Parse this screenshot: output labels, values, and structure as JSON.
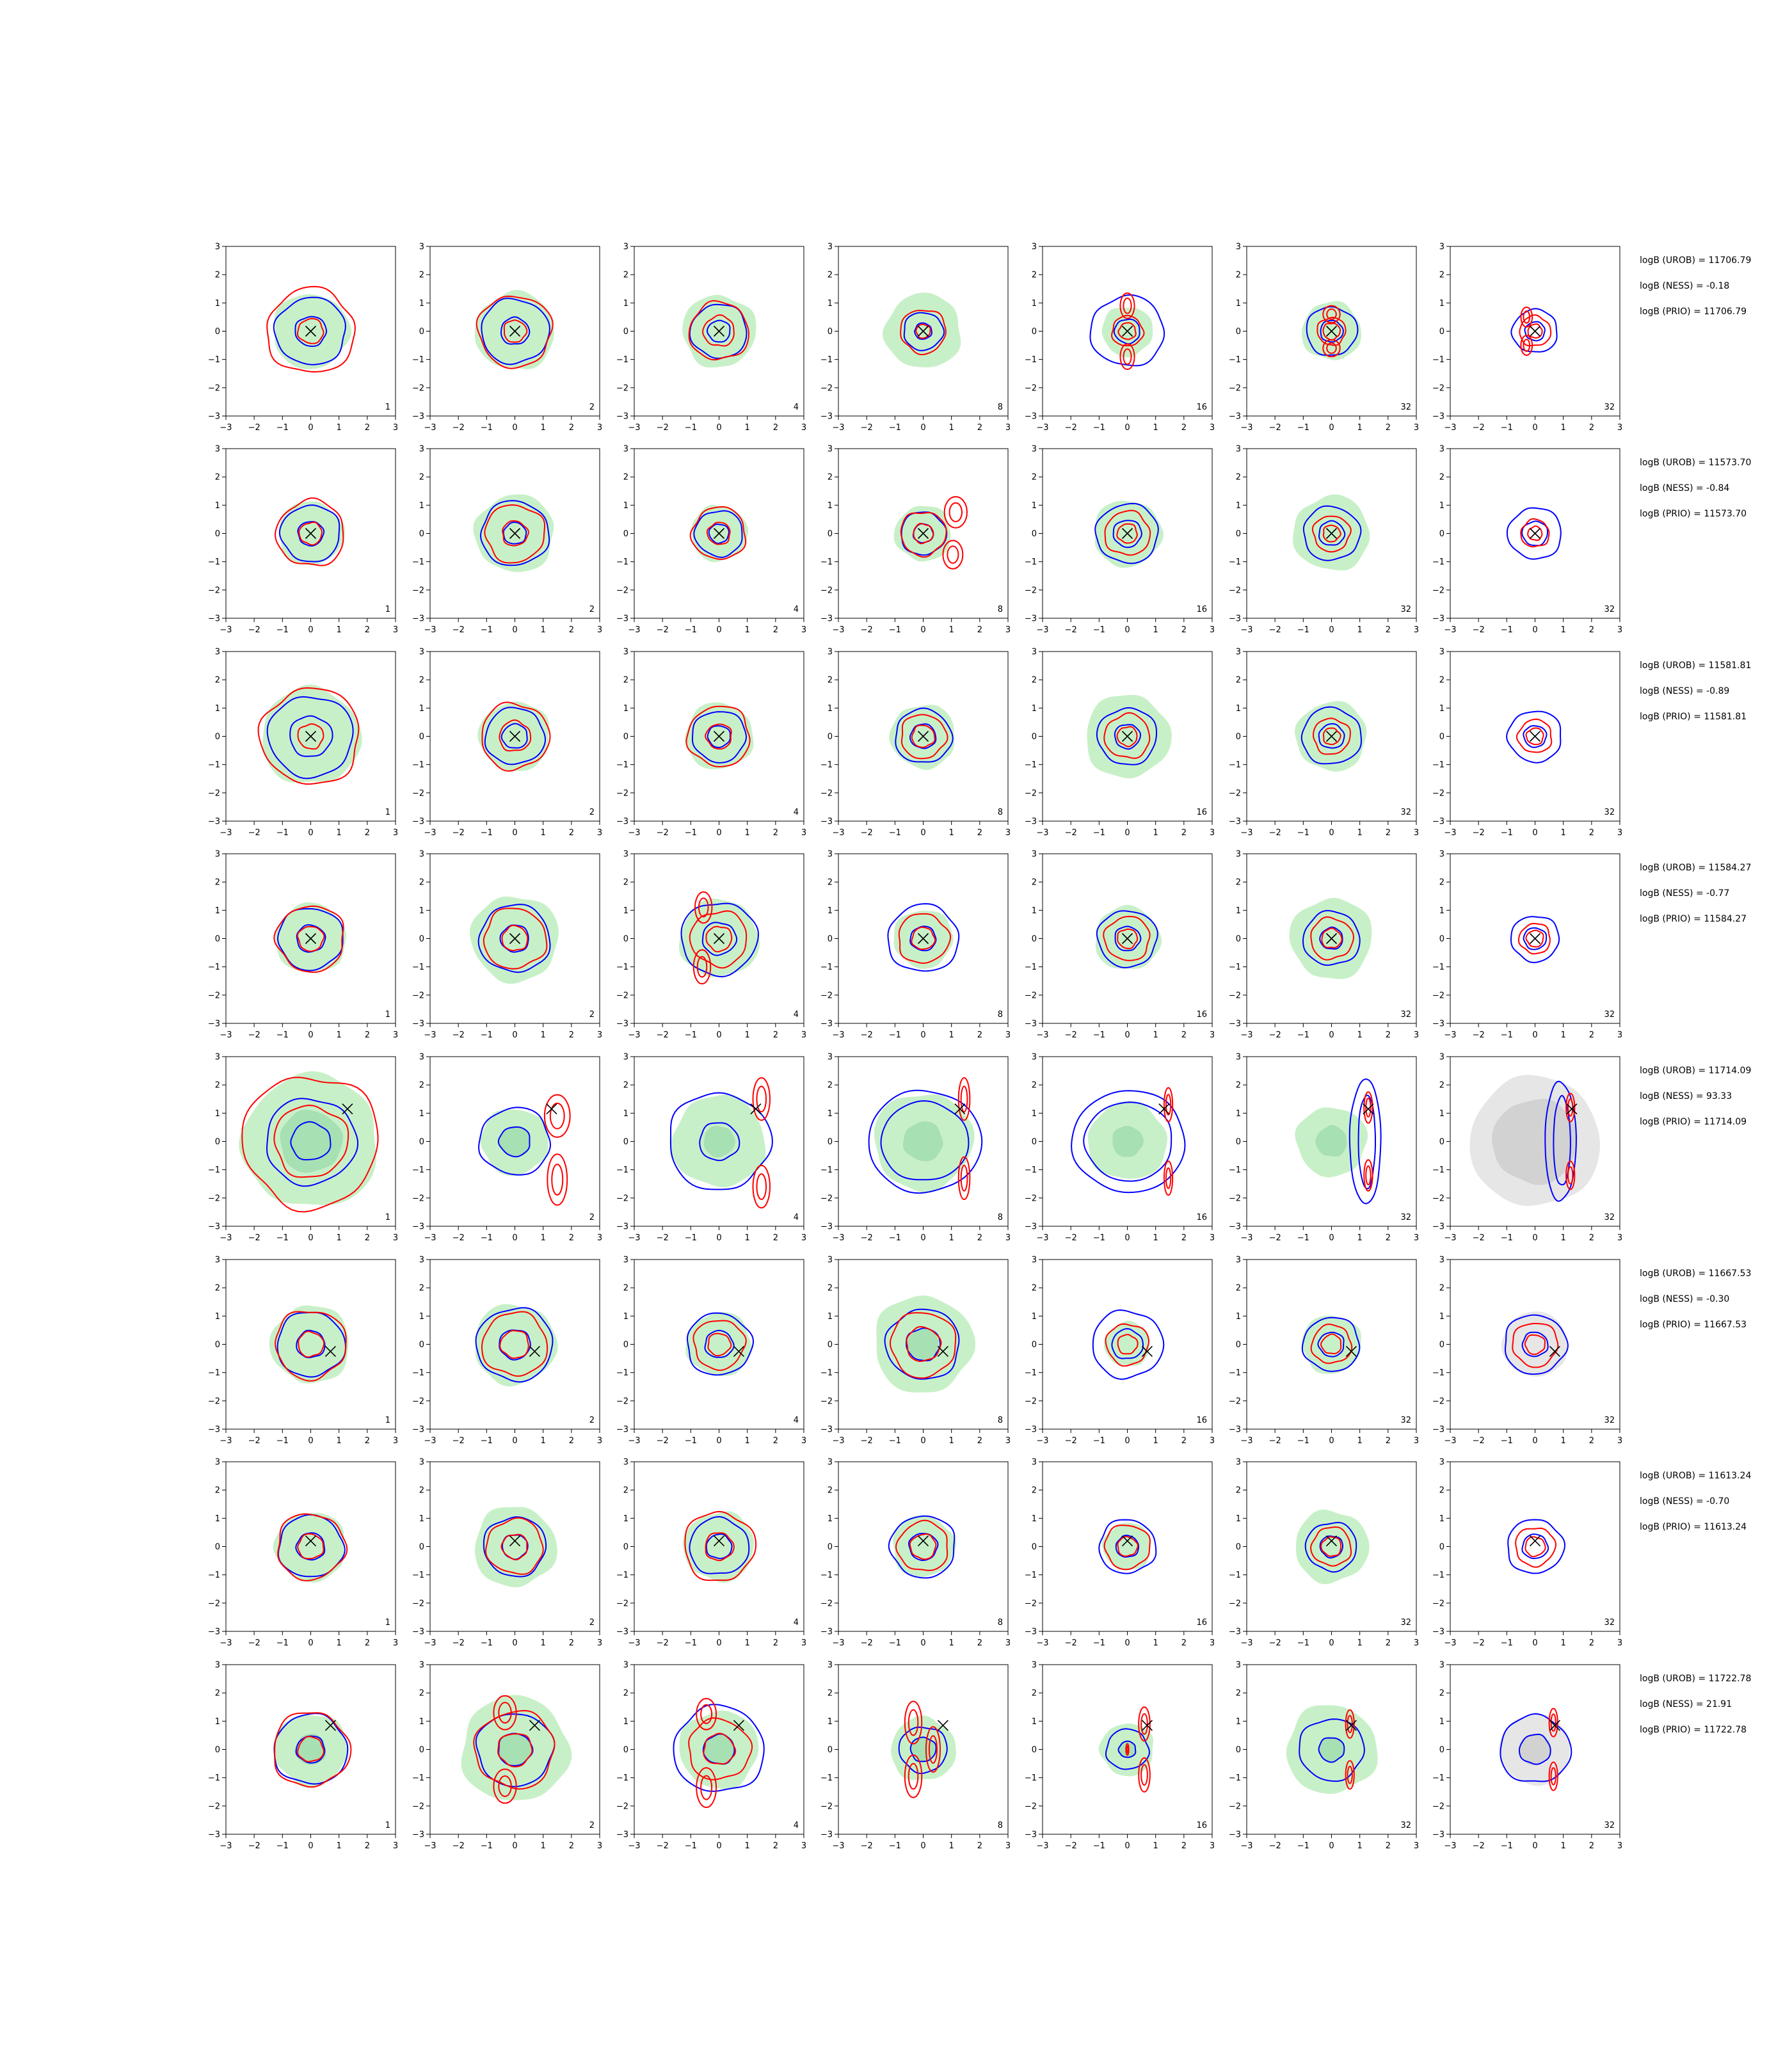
{
  "chart_data": {
    "type": "contour",
    "description_free": true,
    "xlim": [
      -3,
      3
    ],
    "ylim": [
      -3,
      3
    ],
    "ticks": [
      -3,
      -2,
      -1,
      0,
      1,
      2,
      3
    ],
    "tick_labels": [
      "−3",
      "−2",
      "−1",
      "0",
      "1",
      "2",
      "3"
    ],
    "column_labels": [
      "1",
      "2",
      "4",
      "8",
      "16",
      "32",
      "32"
    ],
    "colors": {
      "fill": "#c8f0c8",
      "fill_inner": "#a7e0b2",
      "gray_fill": "#e6e6e6",
      "gray_inner": "#d2d2d2",
      "blue": "#0000ff",
      "red": "#ff0000",
      "marker": "#000000"
    },
    "rows": [
      {
        "marker": [
          0,
          0
        ],
        "stats": [
          "logB (UROB) = 11706.79",
          "logB (NESS) = -0.18",
          "logB (PRIO) = 11706.79"
        ],
        "panels": [
          {
            "fill": 1.35,
            "blue": [
              1.25,
              0.55
            ],
            "red": [
              1.55,
              0.45
            ]
          },
          {
            "fill": 1.4,
            "blue": [
              1.2,
              0.5
            ],
            "red": [
              1.3,
              0.4
            ]
          },
          {
            "fill": 1.3,
            "blue": [
              1.0,
              0.4
            ],
            "red": [
              1.05,
              0.55
            ]
          },
          {
            "fill": 1.35,
            "blue": [
              0.7,
              0.3
            ],
            "red": [
              0.8,
              0.25
            ]
          },
          {
            "fill": 0.9,
            "blue": [
              1.3,
              0.45
            ],
            "red": [
              0.55,
              0.3
            ],
            "lobes": [
              [
                0,
                0.9,
                0.25,
                0.45
              ],
              [
                0,
                -0.9,
                0.25,
                0.45
              ]
            ]
          },
          {
            "fill": 1.05,
            "blue": [
              0.9,
              0.4
            ],
            "red": [
              0.5,
              0.3
            ],
            "lobes": [
              [
                0,
                0.6,
                0.3,
                0.3
              ],
              [
                0,
                -0.6,
                0.3,
                0.3
              ]
            ]
          },
          {
            "fill": 0,
            "blue": [
              0.8,
              0.35
            ],
            "red": [
              0.55,
              0.25
            ],
            "lobes": [
              [
                -0.3,
                0.5,
                0.2,
                0.35
              ],
              [
                -0.3,
                -0.5,
                0.2,
                0.35
              ]
            ]
          }
        ]
      },
      {
        "marker": [
          0,
          0
        ],
        "stats": [
          "logB (UROB) = 11573.70",
          "logB (NESS) = -0.84",
          "logB (PRIO) = 11573.70"
        ],
        "panels": [
          {
            "fill": 1.15,
            "blue": [
              1.05,
              0.45
            ],
            "red": [
              1.2,
              0.4
            ]
          },
          {
            "fill": 1.4,
            "blue": [
              1.2,
              0.4
            ],
            "red": [
              1.05,
              0.45
            ]
          },
          {
            "fill": 1.0,
            "blue": [
              0.85,
              0.35
            ],
            "red": [
              0.95,
              0.4
            ]
          },
          {
            "fill": 1.0,
            "blue": [
              0.8,
              0.35
            ],
            "red": [
              0.8,
              0.35
            ],
            "lobes": [
              [
                1.15,
                0.75,
                0.4,
                0.55
              ],
              [
                1.05,
                -0.75,
                0.35,
                0.5
              ]
            ]
          },
          {
            "fill": 1.2,
            "blue": [
              1.1,
              0.5
            ],
            "red": [
              0.8,
              0.35
            ]
          },
          {
            "fill": 1.35,
            "blue": [
              1.0,
              0.45
            ],
            "red": [
              0.65,
              0.3
            ]
          },
          {
            "fill": 0,
            "blue": [
              0.95,
              0.45
            ],
            "red": [
              0.5,
              0.25
            ]
          }
        ]
      },
      {
        "marker": [
          0,
          0
        ],
        "stats": [
          "logB (UROB) = 11581.81",
          "logB (NESS) = -0.89",
          "logB (PRIO) = 11581.81"
        ],
        "panels": [
          {
            "fill": 1.75,
            "blue": [
              1.5,
              0.75
            ],
            "red": [
              1.75,
              0.45
            ]
          },
          {
            "fill": 1.25,
            "blue": [
              1.05,
              0.45
            ],
            "red": [
              1.2,
              0.55
            ]
          },
          {
            "fill": 1.2,
            "blue": [
              0.95,
              0.4
            ],
            "red": [
              1.1,
              0.45
            ]
          },
          {
            "fill": 1.15,
            "blue": [
              1.0,
              0.45
            ],
            "red": [
              0.8,
              0.4
            ]
          },
          {
            "fill": 1.5,
            "blue": [
              1.05,
              0.45
            ],
            "red": [
              0.8,
              0.35
            ]
          },
          {
            "fill": 1.25,
            "blue": [
              1.05,
              0.45
            ],
            "red": [
              0.65,
              0.3
            ]
          },
          {
            "fill": 0,
            "blue": [
              0.95,
              0.4
            ],
            "red": [
              0.6,
              0.3
            ]
          }
        ]
      },
      {
        "marker": [
          0,
          0
        ],
        "stats": [
          "logB (UROB) = 11584.27",
          "logB (NESS) = -0.77",
          "logB (PRIO) = 11584.27"
        ],
        "panels": [
          {
            "fill": 1.25,
            "blue": [
              1.15,
              0.5
            ],
            "red": [
              1.2,
              0.45
            ]
          },
          {
            "fill": 1.55,
            "blue": [
              1.25,
              0.5
            ],
            "red": [
              1.1,
              0.45
            ]
          },
          {
            "fill": 1.4,
            "blue": [
              1.35,
              0.6
            ],
            "red": [
              1.0,
              0.45
            ],
            "lobes": [
              [
                -0.55,
                1.1,
                0.3,
                0.55
              ],
              [
                -0.6,
                -1.0,
                0.3,
                0.6
              ]
            ]
          },
          {
            "fill": 1.05,
            "blue": [
              1.25,
              0.45
            ],
            "red": [
              0.9,
              0.4
            ]
          },
          {
            "fill": 1.15,
            "blue": [
              1.05,
              0.45
            ],
            "red": [
              0.8,
              0.35
            ]
          },
          {
            "fill": 1.45,
            "blue": [
              1.0,
              0.4
            ],
            "red": [
              0.75,
              0.35
            ]
          },
          {
            "fill": 0,
            "blue": [
              0.85,
              0.4
            ],
            "red": [
              0.55,
              0.3
            ]
          }
        ]
      },
      {
        "marker": [
          1.3,
          1.15
        ],
        "stats": [
          "logB (UROB) = 11714.09",
          "logB (NESS) = 93.33",
          "logB (PRIO) = 11714.09"
        ],
        "panels": [
          {
            "fill": 2.4,
            "fill_inner": 1.1,
            "blue": [
              1.6,
              0.7
            ],
            "red": [
              2.4,
              1.3
            ]
          },
          {
            "fill": 1.2,
            "fill_inner": 0.55,
            "blue": [
              1.25,
              0.55
            ],
            "red": [
              0.0,
              0.0
            ],
            "lobes": [
              [
                1.5,
                0.9,
                0.45,
                0.75
              ],
              [
                1.5,
                -1.35,
                0.35,
                0.9
              ]
            ]
          },
          {
            "fill": 1.65,
            "fill_inner": 0.55,
            "blue": [
              1.8,
              0.7
            ],
            "red": [
              0.0,
              0.0
            ],
            "lobes": [
              [
                1.5,
                1.5,
                0.3,
                0.75
              ],
              [
                1.5,
                -1.6,
                0.3,
                0.75
              ]
            ]
          },
          {
            "fill": 1.75,
            "fill_inner": 0.7,
            "ring": [
              2.0,
              1.55
            ],
            "red": [
              0.0,
              0.0
            ],
            "lobes": [
              [
                1.45,
                1.5,
                0.2,
                0.75
              ],
              [
                1.45,
                -1.3,
                0.2,
                0.75
              ]
            ]
          },
          {
            "fill": 1.4,
            "fill_inner": 0.55,
            "ring": [
              2.0,
              1.55
            ],
            "red": [
              0.0,
              0.0
            ],
            "lobes": [
              [
                1.45,
                1.3,
                0.15,
                0.6
              ],
              [
                1.45,
                -1.3,
                0.15,
                0.6
              ]
            ]
          },
          {
            "fill": 1.25,
            "fill_inner": 0.55,
            "crescent": [
              1.2,
              2.2
            ],
            "red": [
              0.0,
              0.0
            ],
            "lobes": [
              [
                1.3,
                1.2,
                0.15,
                0.55
              ],
              [
                1.3,
                -1.2,
                0.15,
                0.55
              ]
            ]
          },
          {
            "fill": 0,
            "gray": 2.3,
            "gray_inner": 1.5,
            "crescent": [
              0.9,
              2.1
            ],
            "red": [
              0.0,
              0.0
            ],
            "lobes": [
              [
                1.25,
                1.2,
                0.15,
                0.5
              ],
              [
                1.25,
                -1.2,
                0.15,
                0.5
              ]
            ]
          }
        ]
      },
      {
        "marker": [
          0.7,
          -0.25
        ],
        "stats": [
          "logB (UROB) = 11667.53",
          "logB (NESS) = -0.30",
          "logB (PRIO) = 11667.53"
        ],
        "panels": [
          {
            "fill": 1.4,
            "blue": [
              1.2,
              0.5
            ],
            "red": [
              1.25,
              0.45
            ]
          },
          {
            "fill": 1.45,
            "blue": [
              1.35,
              0.55
            ],
            "red": [
              1.15,
              0.5
            ]
          },
          {
            "fill": 1.15,
            "blue": [
              1.15,
              0.5
            ],
            "red": [
              0.9,
              0.4
            ]
          },
          {
            "fill": 1.75,
            "fill_inner": 0.55,
            "blue": [
              1.3,
              0.6
            ],
            "red": [
              0.0,
              0.0
            ],
            "rings_red": [
              1.15,
              0.6
            ]
          },
          {
            "fill": 0.8,
            "blue": [
              1.25,
              0.55
            ],
            "red": [
              0.75,
              0.35
            ]
          },
          {
            "fill": 1.05,
            "blue": [
              1.0,
              0.45
            ],
            "red": [
              0.7,
              0.35
            ]
          },
          {
            "fill": 0,
            "gray": 1.15,
            "blue": [
              1.1,
              0.45
            ],
            "red": [
              0.8,
              0.35
            ]
          }
        ]
      },
      {
        "marker": [
          0,
          0.2
        ],
        "stats": [
          "logB (UROB) = 11613.24",
          "logB (NESS) = -0.70",
          "logB (PRIO) = 11613.24"
        ],
        "panels": [
          {
            "fill": 1.25,
            "blue": [
              1.15,
              0.5
            ],
            "red": [
              1.2,
              0.45
            ]
          },
          {
            "fill": 1.45,
            "blue": [
              1.1,
              0.45
            ],
            "red": [
              1.0,
              0.45
            ]
          },
          {
            "fill": 1.25,
            "blue": [
              1.05,
              0.45
            ],
            "red": [
              1.25,
              0.5
            ]
          },
          {
            "fill": 1.1,
            "blue": [
              1.15,
              0.5
            ],
            "red": [
              0.9,
              0.45
            ]
          },
          {
            "fill": 0.85,
            "blue": [
              1.0,
              0.4
            ],
            "red": [
              0.8,
              0.35
            ]
          },
          {
            "fill": 1.3,
            "blue": [
              0.9,
              0.4
            ],
            "red": [
              0.7,
              0.35
            ]
          },
          {
            "fill": 0,
            "blue": [
              1.0,
              0.45
            ],
            "red": [
              0.7,
              0.35
            ]
          }
        ]
      },
      {
        "marker": [
          0.7,
          0.85
        ],
        "stats": [
          "logB (UROB) = 11722.78",
          "logB (NESS) = 21.91",
          "logB (PRIO) = 11722.78"
        ],
        "panels": [
          {
            "fill": 1.3,
            "fill_inner": 0.55,
            "blue": [
              1.3,
              0.5
            ],
            "red": [
              1.35,
              0.45
            ]
          },
          {
            "fill": 1.9,
            "fill_inner": 0.6,
            "blue": [
              1.35,
              0.6
            ],
            "red": [
              1.4,
              0.6
            ],
            "lobes": [
              [
                -0.35,
                1.3,
                0.4,
                0.6
              ],
              [
                -0.35,
                -1.3,
                0.4,
                0.6
              ]
            ]
          },
          {
            "fill": 1.4,
            "fill_inner": 0.55,
            "blue": [
              1.6,
              0.55
            ],
            "red": [
              1.1,
              0.55
            ],
            "lobes": [
              [
                -0.45,
                1.25,
                0.35,
                0.55
              ],
              [
                -0.45,
                -1.35,
                0.35,
                0.7
              ]
            ]
          },
          {
            "fill": 1.15,
            "fill_inner": 0.45,
            "blue": [
              0.85,
              0.45
            ],
            "red": [
              0.0,
              0.0
            ],
            "lobes": [
              [
                -0.35,
                0.95,
                0.3,
                0.75
              ],
              [
                -0.35,
                -0.95,
                0.3,
                0.75
              ],
              [
                0.35,
                0.0,
                0.25,
                0.8
              ]
            ]
          },
          {
            "fill": 0.95,
            "fill_inner": 0.3,
            "blue": [
              0.75,
              0.3
            ],
            "red": [
              0.0,
              0.0
            ],
            "lobes": [
              [
                0.6,
                0.9,
                0.2,
                0.6
              ],
              [
                0.6,
                -0.9,
                0.2,
                0.6
              ],
              [
                0.0,
                0.0,
                0.05,
                0.2
              ]
            ]
          },
          {
            "fill": 1.6,
            "fill_inner": 0.45,
            "blue": [
              1.15,
              0.45
            ],
            "red": [
              0.0,
              0.0
            ],
            "lobes": [
              [
                0.65,
                0.9,
                0.15,
                0.5
              ],
              [
                0.65,
                -0.9,
                0.15,
                0.5
              ]
            ]
          },
          {
            "fill": 0,
            "gray": 1.25,
            "gray_inner": 0.55,
            "blue": [
              1.25,
              0.55
            ],
            "red": [
              0.0,
              0.0
            ],
            "lobes": [
              [
                0.65,
                0.95,
                0.15,
                0.5
              ],
              [
                0.65,
                -0.95,
                0.15,
                0.5
              ]
            ]
          }
        ]
      }
    ]
  }
}
